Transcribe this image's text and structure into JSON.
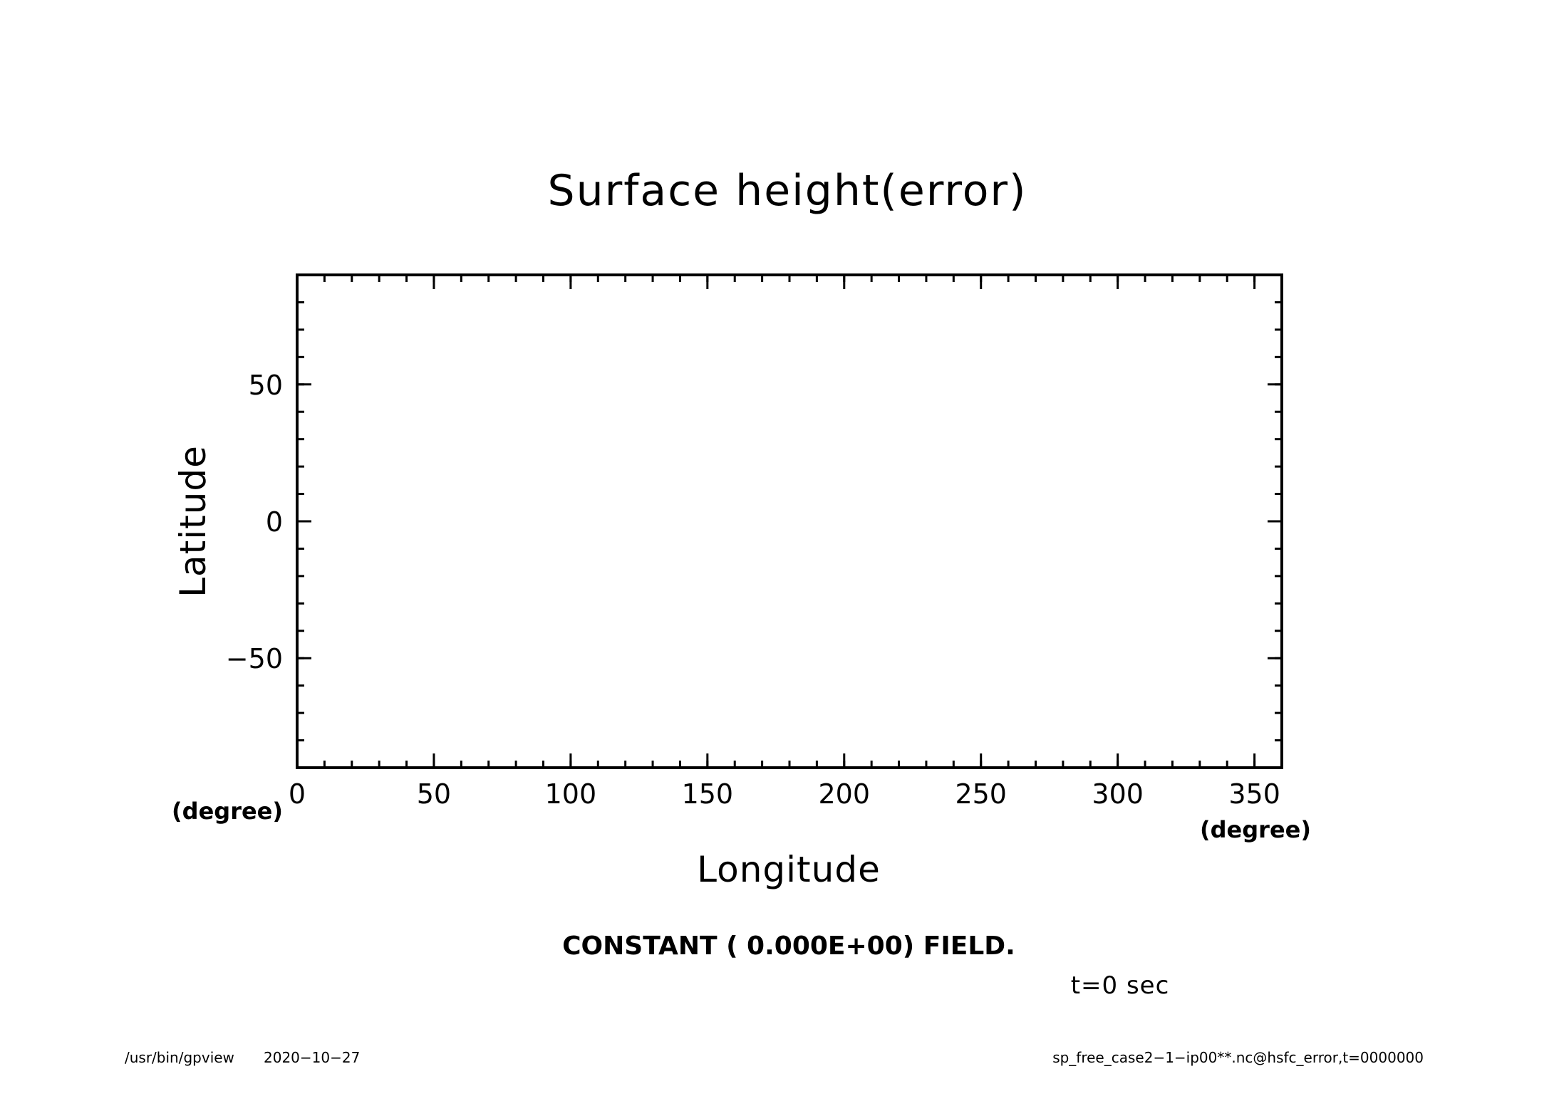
{
  "chart_data": {
    "type": "heatmap",
    "title": "Surface height(error)",
    "xlabel": "Longitude",
    "ylabel": "Latitude",
    "x_unit": "(degree)",
    "y_unit": "(degree)",
    "xlim": [
      0,
      360
    ],
    "ylim": [
      -90,
      90
    ],
    "x_ticks": [
      0,
      50,
      100,
      150,
      200,
      250,
      300,
      350
    ],
    "y_ticks": [
      -50,
      0,
      50
    ],
    "x_tick_labels": [
      "0",
      "50",
      "100",
      "150",
      "200",
      "250",
      "300",
      "350"
    ],
    "y_tick_labels": [
      "−50",
      "0",
      "50"
    ],
    "x_minor_step": 10,
    "y_minor_step": 10,
    "field": "constant",
    "value": 0.0,
    "grid": false,
    "annotation": "CONSTANT ( 0.000E+00) FIELD.",
    "time_label": "t=0 sec"
  },
  "footer": {
    "left_path": "/usr/bin/gpview",
    "left_date": "2020−10−27",
    "right": "sp_free_case2−1−ip00**.nc@hsfc_error,t=0000000"
  }
}
